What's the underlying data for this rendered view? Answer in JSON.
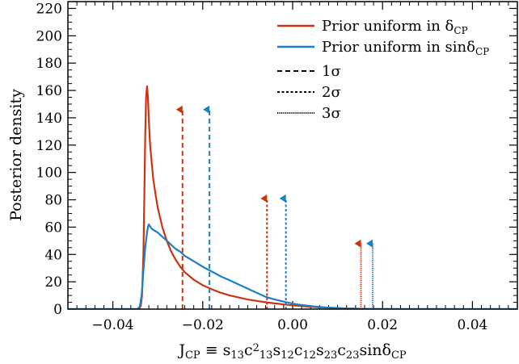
{
  "chart_data": {
    "type": "line",
    "title": "",
    "xlabel": {
      "main": "J",
      "sub": "CP",
      "formula": "≡ s13c213s12c12s23c23sinδCP",
      "parts": [
        {
          "t": "≡ s",
          "k": "n"
        },
        {
          "t": "13",
          "k": "sub"
        },
        {
          "t": "c",
          "k": "n"
        },
        {
          "t": "2",
          "k": "sup"
        },
        {
          "t": "13",
          "k": "sub"
        },
        {
          "t": "s",
          "k": "n"
        },
        {
          "t": "12",
          "k": "sub"
        },
        {
          "t": "c",
          "k": "n"
        },
        {
          "t": "12",
          "k": "sub"
        },
        {
          "t": "s",
          "k": "n"
        },
        {
          "t": "23",
          "k": "sub"
        },
        {
          "t": "c",
          "k": "n"
        },
        {
          "t": "23",
          "k": "sub"
        },
        {
          "t": "sinδ",
          "k": "n"
        },
        {
          "t": "CP",
          "k": "sub"
        }
      ]
    },
    "ylabel": "Posterior density",
    "xlim": [
      -0.05,
      0.05
    ],
    "ylim": [
      0,
      225
    ],
    "xticks": [
      -0.04,
      -0.02,
      0.0,
      0.02,
      0.04
    ],
    "xtick_labels": [
      "−0.04",
      "−0.02",
      "0.00",
      "0.02",
      "0.04"
    ],
    "yticks": [
      0,
      20,
      40,
      60,
      80,
      100,
      120,
      140,
      160,
      180,
      200,
      220
    ],
    "ytick_labels": [
      "0",
      "20",
      "40",
      "60",
      "80",
      "100",
      "120",
      "140",
      "160",
      "180",
      "200",
      "220"
    ],
    "grid": false,
    "legend_position": "top-right",
    "series": [
      {
        "name": "Prior uniform in δCP",
        "label_main": "Prior uniform in δ",
        "label_sub": "CP",
        "color": "#cc3311",
        "x": [
          -0.05,
          -0.0345,
          -0.0338,
          -0.0335,
          -0.0332,
          -0.033,
          -0.0328,
          -0.0326,
          -0.0324,
          -0.0322,
          -0.032,
          -0.0317,
          -0.0313,
          -0.031,
          -0.0305,
          -0.03,
          -0.029,
          -0.028,
          -0.027,
          -0.026,
          -0.025,
          -0.024,
          -0.022,
          -0.02,
          -0.018,
          -0.016,
          -0.014,
          -0.012,
          -0.01,
          -0.008,
          -0.006,
          -0.004,
          -0.002,
          0.0,
          0.002,
          0.004,
          0.006,
          0.008,
          0.01,
          0.012,
          0.014,
          0.016,
          0.018,
          0.02,
          0.025,
          0.05
        ],
        "y": [
          0,
          0,
          2,
          10,
          40,
          80,
          125,
          155,
          163,
          155,
          138,
          120,
          105,
          95,
          84,
          74,
          60,
          50,
          42,
          36,
          31,
          27,
          21.5,
          17.5,
          14.5,
          12,
          10,
          8.5,
          7,
          6,
          5,
          4.2,
          3.4,
          2.8,
          2.2,
          1.7,
          1.3,
          1.0,
          0.7,
          0.5,
          0.35,
          0.2,
          0.1,
          0.05,
          0,
          0
        ]
      },
      {
        "name": "Prior uniform in sinδCP",
        "label_main": "Prior uniform in sinδ",
        "label_sub": "CP",
        "color": "#1a7fc4",
        "x": [
          -0.05,
          -0.0345,
          -0.034,
          -0.0336,
          -0.0332,
          -0.0328,
          -0.0324,
          -0.0322,
          -0.032,
          -0.0318,
          -0.0316,
          -0.0314,
          -0.031,
          -0.0305,
          -0.03,
          -0.029,
          -0.028,
          -0.027,
          -0.026,
          -0.025,
          -0.024,
          -0.022,
          -0.02,
          -0.018,
          -0.016,
          -0.014,
          -0.012,
          -0.01,
          -0.008,
          -0.006,
          -0.004,
          -0.002,
          0.0,
          0.002,
          0.004,
          0.006,
          0.008,
          0.01,
          0.012,
          0.014,
          0.016,
          0.018,
          0.02,
          0.022,
          0.025,
          0.05
        ],
        "y": [
          0,
          0,
          2,
          10,
          28,
          45,
          56,
          60,
          62,
          61,
          60,
          59,
          58,
          57,
          56,
          53,
          50,
          47,
          44,
          42,
          39,
          35,
          31,
          27.5,
          24,
          21,
          18,
          15,
          12,
          9,
          7,
          5.5,
          4,
          3,
          2.2,
          1.6,
          1.1,
          0.8,
          0.5,
          0.3,
          0.2,
          0.1,
          0.05,
          0.02,
          0,
          0
        ]
      }
    ],
    "credible_intervals": [
      {
        "series": "Prior uniform in δCP",
        "level": "1σ",
        "x": -0.0245,
        "height": 146,
        "style": "dashed",
        "color": "#cc3311"
      },
      {
        "series": "Prior uniform in sinδCP",
        "level": "1σ",
        "x": -0.0185,
        "height": 146,
        "style": "dashed",
        "color": "#1a7fc4"
      },
      {
        "series": "Prior uniform in δCP",
        "level": "2σ",
        "x": -0.0057,
        "height": 81,
        "style": "dashed2",
        "color": "#cc3311"
      },
      {
        "series": "Prior uniform in sinδCP",
        "level": "2σ",
        "x": -0.0015,
        "height": 81,
        "style": "dashed2",
        "color": "#1a7fc4"
      },
      {
        "series": "Prior uniform in δCP",
        "level": "3σ",
        "x": 0.0152,
        "height": 48,
        "style": "dotted",
        "color": "#cc3311"
      },
      {
        "series": "Prior uniform in sinδCP",
        "level": "3σ",
        "x": 0.0178,
        "height": 48,
        "style": "dotted",
        "color": "#1a7fc4"
      }
    ],
    "legend_styles": [
      {
        "label": "1σ",
        "style": "dashed"
      },
      {
        "label": "2σ",
        "style": "dashed2"
      },
      {
        "label": "3σ",
        "style": "dotted"
      }
    ]
  }
}
